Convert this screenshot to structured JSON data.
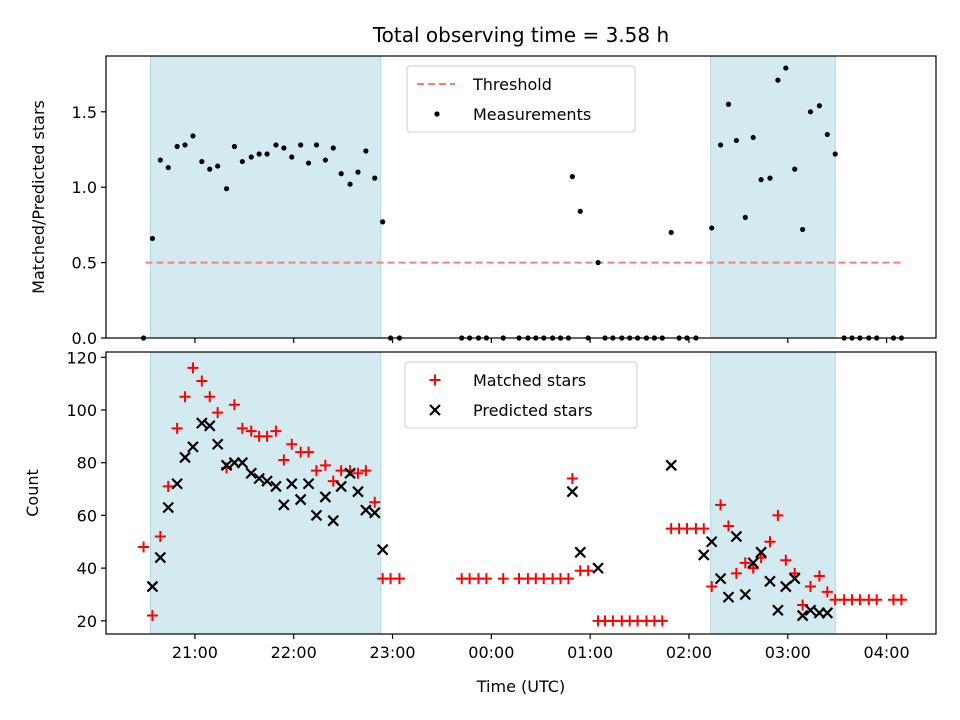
{
  "chart_data": {
    "title": "Total observing time = 3.58 h",
    "xlabel": "Time (UTC)",
    "x_ticks": [
      "21:00",
      "22:00",
      "23:00",
      "00:00",
      "01:00",
      "02:00",
      "03:00",
      "04:00"
    ],
    "x_tick_hours": [
      21,
      22,
      23,
      24,
      25,
      26,
      27,
      28
    ],
    "xlim_hours": [
      20.1,
      28.5
    ],
    "shaded_intervals_hours": [
      [
        20.55,
        22.88
      ],
      [
        26.22,
        27.48
      ]
    ],
    "shade_color": "#d4eaf1",
    "panels": [
      {
        "type": "scatter",
        "ylabel": "Matched/Predicted stars",
        "ylim": [
          0,
          1.87
        ],
        "y_ticks": [
          0.0,
          0.5,
          1.0,
          1.5
        ],
        "y_tick_labels": [
          "0.0",
          "0.5",
          "1.0",
          "1.5"
        ],
        "threshold": {
          "name": "Threshold",
          "value": 0.5,
          "x_range": [
            20.5,
            28.15
          ],
          "color": "#f08080"
        },
        "series": [
          {
            "name": "Measurements",
            "marker": "dot",
            "color": "#000000",
            "points": [
              [
                20.48,
                0.0
              ],
              [
                20.57,
                0.66
              ],
              [
                20.65,
                1.18
              ],
              [
                20.73,
                1.13
              ],
              [
                20.82,
                1.27
              ],
              [
                20.9,
                1.28
              ],
              [
                20.98,
                1.34
              ],
              [
                21.07,
                1.17
              ],
              [
                21.15,
                1.12
              ],
              [
                21.23,
                1.14
              ],
              [
                21.32,
                0.99
              ],
              [
                21.4,
                1.27
              ],
              [
                21.48,
                1.17
              ],
              [
                21.57,
                1.2
              ],
              [
                21.65,
                1.22
              ],
              [
                21.73,
                1.22
              ],
              [
                21.82,
                1.28
              ],
              [
                21.9,
                1.26
              ],
              [
                21.98,
                1.2
              ],
              [
                22.07,
                1.28
              ],
              [
                22.15,
                1.16
              ],
              [
                22.23,
                1.28
              ],
              [
                22.32,
                1.18
              ],
              [
                22.4,
                1.26
              ],
              [
                22.48,
                1.09
              ],
              [
                22.57,
                1.02
              ],
              [
                22.65,
                1.1
              ],
              [
                22.73,
                1.24
              ],
              [
                22.82,
                1.06
              ],
              [
                22.9,
                0.77
              ],
              [
                22.98,
                0.0
              ],
              [
                23.07,
                0.0
              ],
              [
                23.7,
                0.0
              ],
              [
                23.78,
                0.0
              ],
              [
                23.87,
                0.0
              ],
              [
                23.95,
                0.0
              ],
              [
                24.12,
                0.0
              ],
              [
                24.28,
                0.0
              ],
              [
                24.37,
                0.0
              ],
              [
                24.45,
                0.0
              ],
              [
                24.53,
                0.0
              ],
              [
                24.62,
                0.0
              ],
              [
                24.7,
                0.0
              ],
              [
                24.78,
                0.0
              ],
              [
                24.82,
                1.07
              ],
              [
                24.9,
                0.84
              ],
              [
                24.98,
                0.0
              ],
              [
                25.08,
                0.5
              ],
              [
                25.15,
                0.0
              ],
              [
                25.23,
                0.0
              ],
              [
                25.32,
                0.0
              ],
              [
                25.4,
                0.0
              ],
              [
                25.48,
                0.0
              ],
              [
                25.57,
                0.0
              ],
              [
                25.65,
                0.0
              ],
              [
                25.73,
                0.0
              ],
              [
                25.82,
                0.7
              ],
              [
                25.9,
                0.0
              ],
              [
                25.98,
                0.0
              ],
              [
                26.07,
                0.0
              ],
              [
                26.23,
                0.73
              ],
              [
                26.32,
                1.28
              ],
              [
                26.4,
                1.55
              ],
              [
                26.48,
                1.31
              ],
              [
                26.57,
                0.8
              ],
              [
                26.65,
                1.33
              ],
              [
                26.73,
                1.05
              ],
              [
                26.82,
                1.06
              ],
              [
                26.9,
                1.71
              ],
              [
                26.98,
                1.79
              ],
              [
                27.07,
                1.12
              ],
              [
                27.15,
                0.72
              ],
              [
                27.23,
                1.5
              ],
              [
                27.32,
                1.54
              ],
              [
                27.4,
                1.35
              ],
              [
                27.48,
                1.22
              ],
              [
                27.57,
                0.0
              ],
              [
                27.65,
                0.0
              ],
              [
                27.73,
                0.0
              ],
              [
                27.82,
                0.0
              ],
              [
                27.9,
                0.0
              ],
              [
                28.07,
                0.0
              ],
              [
                28.15,
                0.0
              ]
            ]
          }
        ]
      },
      {
        "type": "scatter",
        "ylabel": "Count",
        "ylim": [
          15,
          122
        ],
        "y_ticks": [
          20,
          40,
          60,
          80,
          100,
          120
        ],
        "y_tick_labels": [
          "20",
          "40",
          "60",
          "80",
          "100",
          "120"
        ],
        "series": [
          {
            "name": "Matched stars",
            "marker": "plus",
            "color": "#ff0000",
            "points": [
              [
                20.48,
                48
              ],
              [
                20.57,
                22
              ],
              [
                20.65,
                52
              ],
              [
                20.73,
                71
              ],
              [
                20.82,
                93
              ],
              [
                20.9,
                105
              ],
              [
                20.98,
                116
              ],
              [
                21.07,
                111
              ],
              [
                21.15,
                105
              ],
              [
                21.23,
                99
              ],
              [
                21.32,
                78
              ],
              [
                21.4,
                102
              ],
              [
                21.48,
                93
              ],
              [
                21.57,
                92
              ],
              [
                21.65,
                90
              ],
              [
                21.73,
                90
              ],
              [
                21.82,
                92
              ],
              [
                21.9,
                81
              ],
              [
                21.98,
                87
              ],
              [
                22.07,
                84
              ],
              [
                22.15,
                84
              ],
              [
                22.23,
                77
              ],
              [
                22.32,
                79
              ],
              [
                22.4,
                73
              ],
              [
                22.48,
                77
              ],
              [
                22.57,
                77
              ],
              [
                22.65,
                76
              ],
              [
                22.73,
                77
              ],
              [
                22.82,
                65
              ],
              [
                22.9,
                36
              ],
              [
                22.98,
                36
              ],
              [
                23.07,
                36
              ],
              [
                23.7,
                36
              ],
              [
                23.78,
                36
              ],
              [
                23.87,
                36
              ],
              [
                23.95,
                36
              ],
              [
                24.12,
                36
              ],
              [
                24.28,
                36
              ],
              [
                24.37,
                36
              ],
              [
                24.45,
                36
              ],
              [
                24.53,
                36
              ],
              [
                24.62,
                36
              ],
              [
                24.7,
                36
              ],
              [
                24.78,
                36
              ],
              [
                24.82,
                74
              ],
              [
                24.9,
                39
              ],
              [
                24.98,
                39
              ],
              [
                25.08,
                20
              ],
              [
                25.15,
                20
              ],
              [
                25.23,
                20
              ],
              [
                25.32,
                20
              ],
              [
                25.4,
                20
              ],
              [
                25.48,
                20
              ],
              [
                25.57,
                20
              ],
              [
                25.65,
                20
              ],
              [
                25.73,
                20
              ],
              [
                25.82,
                55
              ],
              [
                25.9,
                55
              ],
              [
                25.98,
                55
              ],
              [
                26.07,
                55
              ],
              [
                26.15,
                55
              ],
              [
                26.23,
                33
              ],
              [
                26.32,
                64
              ],
              [
                26.4,
                56
              ],
              [
                26.48,
                38
              ],
              [
                26.57,
                42
              ],
              [
                26.65,
                40
              ],
              [
                26.73,
                44
              ],
              [
                26.82,
                50
              ],
              [
                26.9,
                60
              ],
              [
                26.98,
                43
              ],
              [
                27.07,
                38
              ],
              [
                27.15,
                26
              ],
              [
                27.23,
                33
              ],
              [
                27.32,
                37
              ],
              [
                27.4,
                31
              ],
              [
                27.48,
                28
              ],
              [
                27.57,
                28
              ],
              [
                27.65,
                28
              ],
              [
                27.73,
                28
              ],
              [
                27.82,
                28
              ],
              [
                27.9,
                28
              ],
              [
                28.07,
                28
              ],
              [
                28.15,
                28
              ]
            ]
          },
          {
            "name": "Predicted stars",
            "marker": "x",
            "color": "#000000",
            "points": [
              [
                20.57,
                33
              ],
              [
                20.65,
                44
              ],
              [
                20.73,
                63
              ],
              [
                20.82,
                72
              ],
              [
                20.9,
                82
              ],
              [
                20.98,
                86
              ],
              [
                21.07,
                95
              ],
              [
                21.15,
                94
              ],
              [
                21.23,
                87
              ],
              [
                21.32,
                79
              ],
              [
                21.4,
                80
              ],
              [
                21.48,
                80
              ],
              [
                21.57,
                76
              ],
              [
                21.65,
                74
              ],
              [
                21.73,
                73
              ],
              [
                21.82,
                71
              ],
              [
                21.9,
                64
              ],
              [
                21.98,
                72
              ],
              [
                22.07,
                66
              ],
              [
                22.15,
                72
              ],
              [
                22.23,
                60
              ],
              [
                22.32,
                67
              ],
              [
                22.4,
                58
              ],
              [
                22.48,
                71
              ],
              [
                22.57,
                76
              ],
              [
                22.65,
                69
              ],
              [
                22.73,
                62
              ],
              [
                22.82,
                61
              ],
              [
                22.9,
                47
              ],
              [
                24.82,
                69
              ],
              [
                24.9,
                46
              ],
              [
                25.08,
                40
              ],
              [
                25.82,
                79
              ],
              [
                26.15,
                45
              ],
              [
                26.23,
                50
              ],
              [
                26.32,
                36
              ],
              [
                26.4,
                29
              ],
              [
                26.48,
                52
              ],
              [
                26.57,
                30
              ],
              [
                26.65,
                42
              ],
              [
                26.73,
                46
              ],
              [
                26.82,
                35
              ],
              [
                26.9,
                24
              ],
              [
                26.98,
                33
              ],
              [
                27.07,
                36
              ],
              [
                27.15,
                22
              ],
              [
                27.23,
                24
              ],
              [
                27.32,
                23
              ],
              [
                27.4,
                23
              ]
            ]
          }
        ]
      }
    ]
  }
}
